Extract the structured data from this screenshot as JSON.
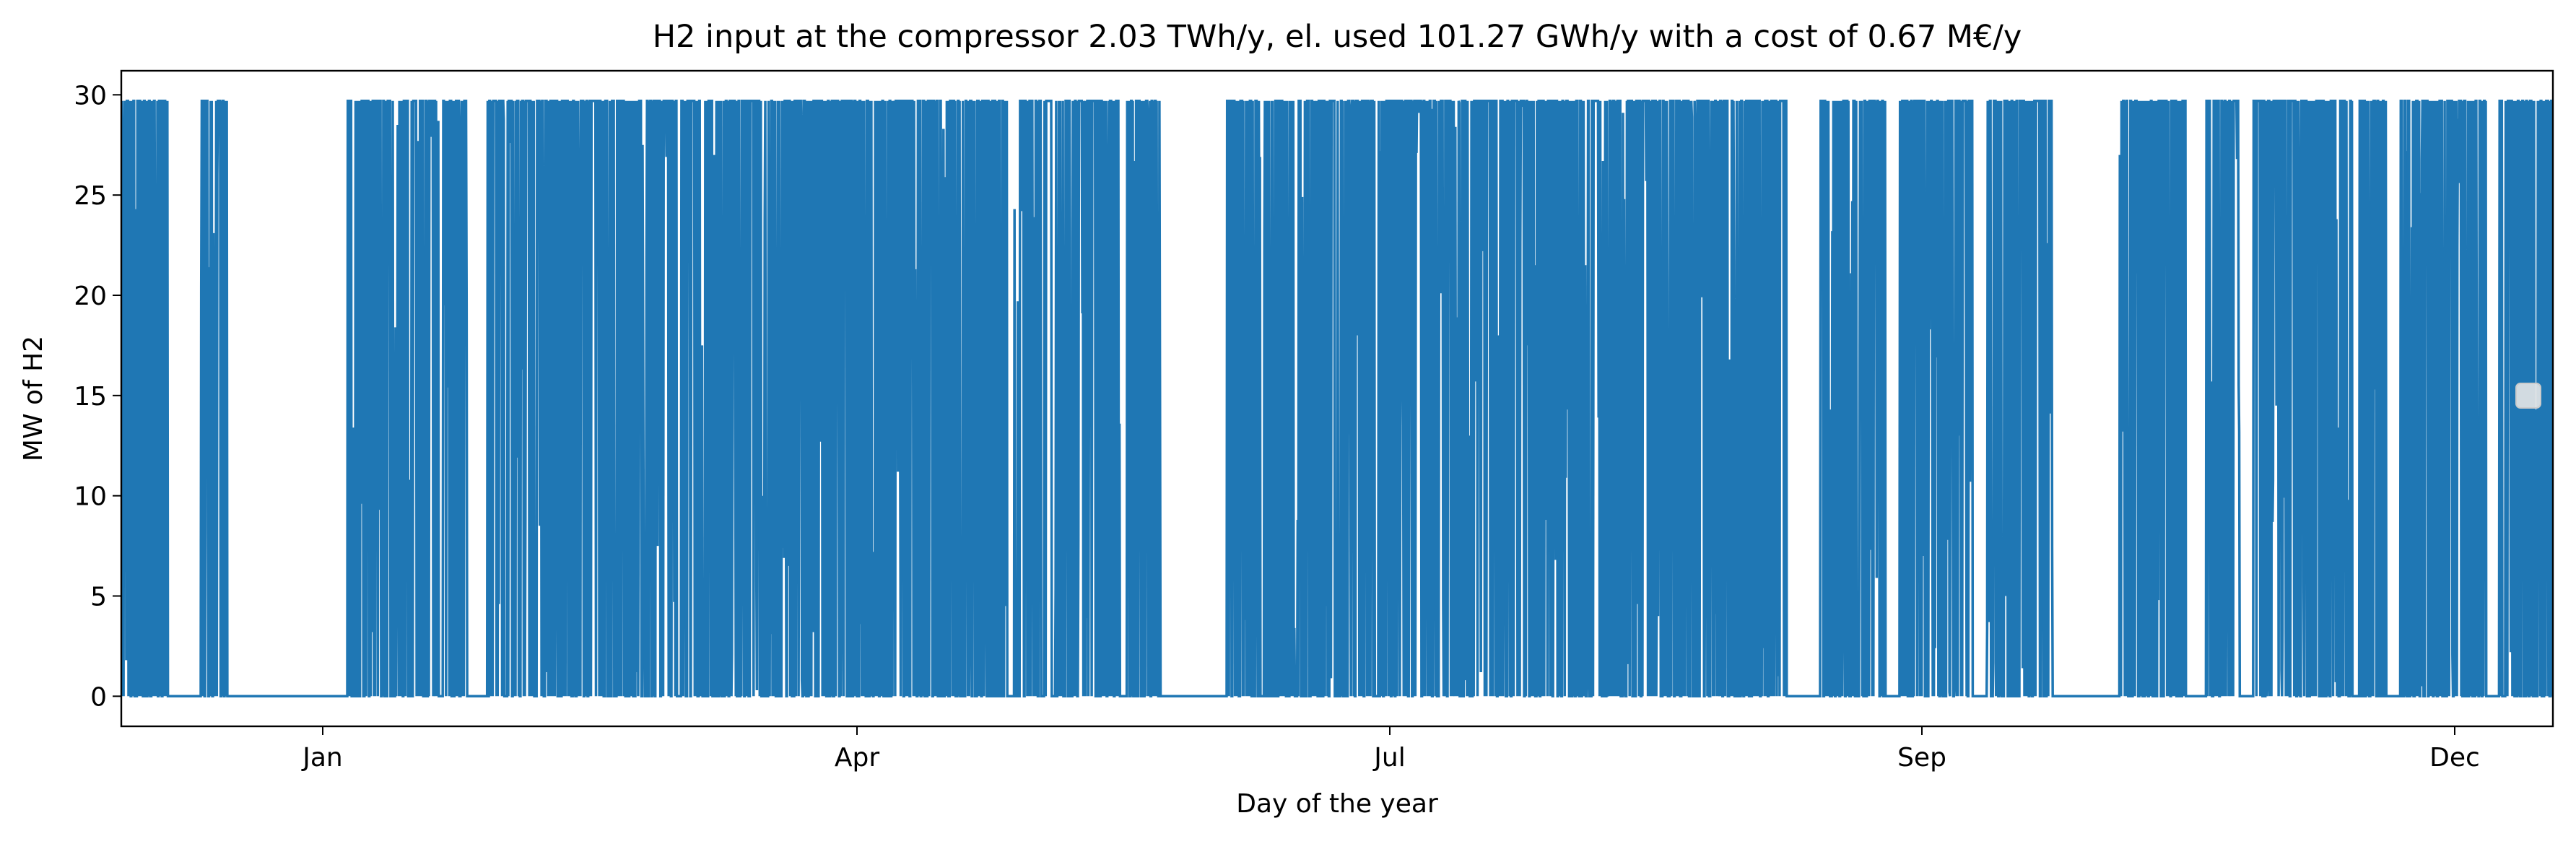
{
  "chart_data": {
    "type": "line",
    "title": "H2 input at the compressor 2.03 TWh/y, el. used 101.27 GWh/y with a cost of 0.67 M€/y",
    "xlabel": "Day of the year",
    "ylabel": "MW of H2",
    "x_tick_labels": [
      "Jan",
      "Apr",
      "Jul",
      "Sep",
      "Dec"
    ],
    "y_tick_labels": [
      "0",
      "5",
      "10",
      "15",
      "20",
      "25",
      "30"
    ],
    "y_ticks": [
      0,
      5,
      10,
      15,
      20,
      25,
      30
    ],
    "ylim": [
      -1.5,
      31.2
    ],
    "grid": false,
    "legend": "empty legend box, right",
    "series": [
      {
        "color": "#1f77b4",
        "note": "hourly series oscillating between 0 and 29.7 MW; dense periods listed below (day index, approximate)",
        "max_value": 29.7,
        "min_value": 0,
        "active_periods_days": [
          [
            0,
            7
          ],
          [
            12,
            16
          ],
          [
            34,
            52
          ],
          [
            55,
            133
          ],
          [
            134,
            150
          ],
          [
            151,
            156
          ],
          [
            166,
            250
          ],
          [
            255,
            265
          ],
          [
            267,
            278
          ],
          [
            280,
            290
          ],
          [
            300,
            310
          ],
          [
            313,
            318
          ],
          [
            320,
            335
          ],
          [
            336,
            340
          ],
          [
            342,
            355
          ],
          [
            357,
            365
          ]
        ],
        "idle_periods_days": [
          [
            7,
            12
          ],
          [
            16,
            34
          ],
          [
            150,
            151
          ],
          [
            156,
            166
          ],
          [
            290,
            300
          ],
          [
            310,
            313
          ],
          [
            355,
            357
          ]
        ]
      }
    ]
  }
}
